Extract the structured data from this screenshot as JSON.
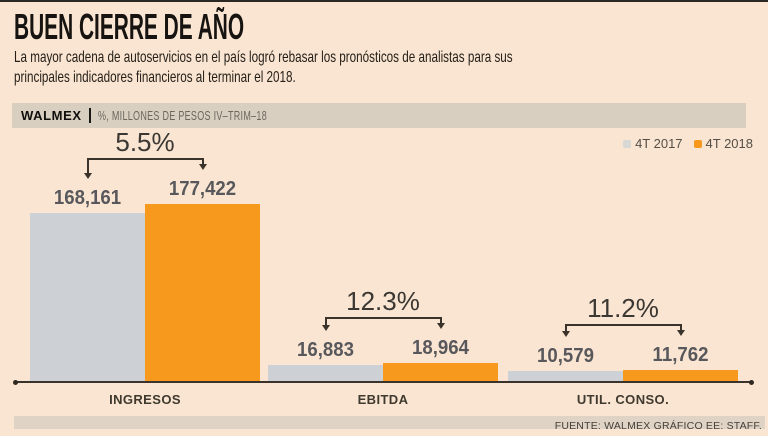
{
  "header": {
    "title": "BUEN CIERRE DE AÑO",
    "subtitle_lines": [
      "La mayor cadena de autoservicios en el país logró rebasar los pronósticos de analistas para sus",
      "principales indicadores financieros al terminar el 2018."
    ]
  },
  "kicker": {
    "brand": "WALMEX",
    "units": "%, MILLONES DE PESOS IV–TRIM–18"
  },
  "legend": [
    {
      "label": "4T 2017",
      "color": "#d7d7d5"
    },
    {
      "label": "4T 2018",
      "color": "#f6991d"
    }
  ],
  "chart_data": {
    "type": "bar",
    "title": "BUEN CIERRE DE AÑO",
    "units_label": "%, MILLONES DE PESOS IV–TRIM–18",
    "categories": [
      "INGRESOS",
      "EBITDA",
      "UTIL. CONSO."
    ],
    "series": [
      {
        "name": "4T 2017",
        "color": "#cdd1d5",
        "values": [
          168161,
          16883,
          10579
        ]
      },
      {
        "name": "4T 2018",
        "color": "#f6991d",
        "values": [
          177422,
          18964,
          11762
        ]
      }
    ],
    "value_labels": [
      [
        "168,161",
        "177,422"
      ],
      [
        "16,883",
        "18,964"
      ],
      [
        "10,579",
        "11,762"
      ]
    ],
    "pct_changes": [
      5.5,
      12.3,
      11.2
    ],
    "pct_change_labels": [
      "5.5%",
      "12.3%",
      "11.2%"
    ],
    "legend_position": "top-right",
    "grid": false,
    "baseline_value": 0
  },
  "footer": {
    "source": "FUENTE: WALMEX GRÁFICO EE: STAFF."
  },
  "colors": {
    "background": "#f9e5d1",
    "kicker_band": "#d8cfc0",
    "footer_band": "#ded3c4",
    "bar_2017": "#cdd1d5",
    "bar_2018": "#f6991d",
    "axis": "#3a332b"
  }
}
